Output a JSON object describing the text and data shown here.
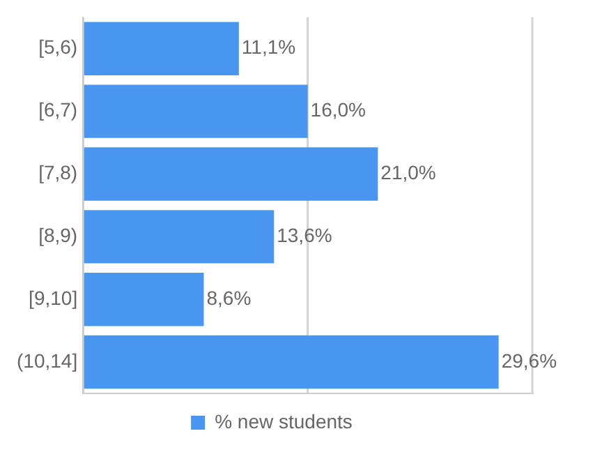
{
  "chart_data": {
    "type": "bar",
    "orientation": "horizontal",
    "categories": [
      "[5,6)",
      "[6,7)",
      "[7,8)",
      "[8,9)",
      "[9,10]",
      "(10,14]"
    ],
    "series": [
      {
        "name": "% new students",
        "color": "#4896f0",
        "values": [
          11.1,
          16.0,
          21.0,
          13.6,
          8.6,
          29.6
        ],
        "value_labels": [
          "11,1%",
          "16,0%",
          "21,0%",
          "13,6%",
          "8,6%",
          "29,6%"
        ]
      }
    ],
    "xlim": [
      0,
      32
    ],
    "xticks": [
      {
        "value": 0,
        "label": null
      },
      {
        "value": 16,
        "label": null
      }
    ],
    "grid": "x",
    "legend": "bottom",
    "tick_labels": "y"
  }
}
